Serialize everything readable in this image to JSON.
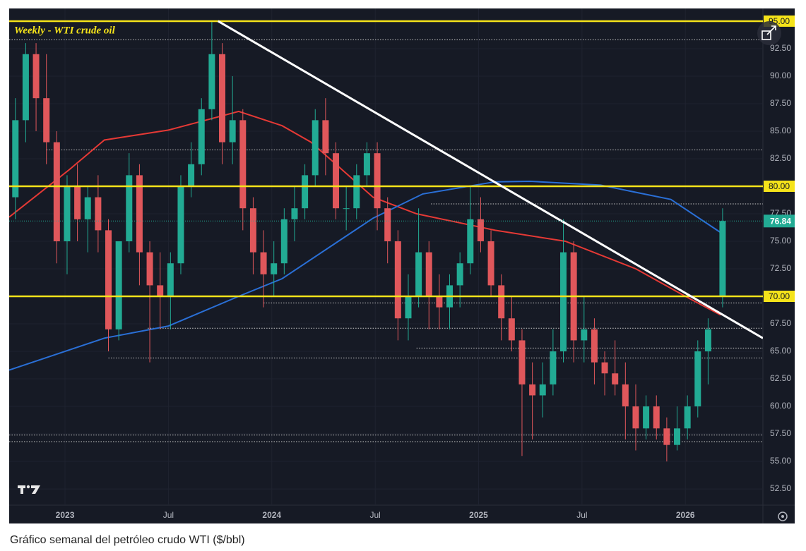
{
  "chart_data": {
    "type": "candlestick",
    "title": "Weekly - WTI crude oil",
    "caption": "Gráfico semanal del petróleo crudo WTI ($/bbl)",
    "xlim": [
      2022.73,
      2026.375
    ],
    "xticks": [
      2023,
      {
        "value": 2023.5,
        "label": "Jul"
      },
      2024,
      {
        "value": 2024.5,
        "label": "Jul"
      },
      2025,
      {
        "value": 2025.5,
        "label": "Jul"
      },
      2026
    ],
    "ylim": [
      51.03,
      96.15
    ],
    "yticks": [
      {
        "value": 52.5,
        "label": "52.50"
      },
      {
        "value": 55,
        "label": "55.00"
      },
      {
        "value": 57.5,
        "label": "57.50"
      },
      {
        "value": 60,
        "label": "60.00"
      },
      {
        "value": 62.5,
        "label": "62.50"
      },
      {
        "value": 65,
        "label": "65.00"
      },
      {
        "value": 67.5,
        "label": "67.50"
      },
      {
        "value": 70,
        "label": "70.00"
      },
      {
        "value": 72.5,
        "label": "72.50"
      },
      {
        "value": 75,
        "label": "75.00"
      },
      {
        "value": 77.5,
        "label": "77.50"
      },
      {
        "value": 80,
        "label": "80.00"
      },
      {
        "value": 82.5,
        "label": "82.50"
      },
      {
        "value": 85,
        "label": "85.00"
      },
      {
        "value": 87.5,
        "label": "87.50"
      },
      {
        "value": 90,
        "label": "90.00"
      },
      {
        "value": 92.5,
        "label": "92.50"
      }
    ],
    "grid": true,
    "up_color": "#22ab94",
    "down_color": "#e0575b",
    "x": [
      2022.76,
      2022.81,
      2022.86,
      2022.91,
      2022.96,
      2023.01,
      2023.06,
      2023.11,
      2023.16,
      2023.21,
      2023.26,
      2023.31,
      2023.36,
      2023.41,
      2023.46,
      2023.51,
      2023.56,
      2023.61,
      2023.66,
      2023.71,
      2023.76,
      2023.81,
      2023.86,
      2023.91,
      2023.96,
      2024.01,
      2024.06,
      2024.11,
      2024.16,
      2024.21,
      2024.26,
      2024.31,
      2024.36,
      2024.41,
      2024.46,
      2024.51,
      2024.56,
      2024.61,
      2024.66,
      2024.71,
      2024.76,
      2024.81,
      2024.86,
      2024.91,
      2024.96,
      2025.01,
      2025.06,
      2025.11,
      2025.16,
      2025.21,
      2025.26,
      2025.31,
      2025.36,
      2025.41,
      2025.46,
      2025.51,
      2025.56,
      2025.61,
      2025.66,
      2025.71,
      2025.76,
      2025.81,
      2025.86,
      2025.91,
      2025.96,
      2026.01,
      2026.06,
      2026.11,
      2026.18
    ],
    "open": [
      79,
      86,
      92,
      88,
      84,
      75,
      80,
      77,
      79,
      76,
      67,
      75,
      81,
      74,
      71,
      70,
      73,
      80,
      82,
      87,
      92,
      84,
      86,
      78,
      74,
      72,
      73,
      77,
      78,
      81,
      86,
      83,
      78,
      78,
      81,
      83,
      78,
      75,
      68,
      70,
      74,
      70,
      69,
      71,
      73,
      77,
      75,
      71,
      68,
      66,
      62,
      61,
      62,
      65,
      74,
      66,
      67,
      64,
      63,
      62,
      60,
      58,
      60,
      58,
      56.5,
      58,
      60,
      65,
      70
    ],
    "high": [
      88,
      93,
      93,
      92,
      85,
      81,
      82,
      80,
      81,
      77,
      75,
      83,
      82,
      75,
      74,
      74,
      81,
      84,
      88,
      95,
      93,
      90,
      87,
      79,
      76,
      75,
      78,
      80,
      82,
      87,
      88,
      84,
      80,
      82,
      84,
      84,
      79,
      76,
      72,
      78,
      75,
      72,
      72,
      74,
      80,
      79,
      76,
      72,
      70,
      67,
      64,
      64,
      67,
      77,
      75,
      70,
      68,
      65,
      66,
      64,
      62,
      61,
      61,
      59,
      60,
      61,
      66,
      68,
      78
    ],
    "low": [
      77,
      84,
      85,
      82,
      73,
      72,
      75,
      74,
      74,
      65,
      66,
      74,
      71,
      64,
      67,
      67,
      72,
      79,
      81,
      86,
      82,
      82,
      76,
      72,
      69,
      70,
      72,
      75,
      77,
      80,
      81,
      77,
      76,
      77,
      80,
      76,
      73,
      66,
      66,
      69,
      67,
      67,
      67,
      69,
      72,
      74,
      70,
      66,
      65,
      55.5,
      57,
      59,
      61,
      64,
      64,
      64,
      62,
      61,
      61,
      57,
      56,
      57,
      57,
      55,
      56,
      57,
      59,
      62,
      69
    ],
    "close": [
      86,
      92,
      88,
      84,
      75,
      80,
      77,
      79,
      76,
      67,
      75,
      81,
      74,
      71,
      70,
      73,
      80,
      82,
      87,
      92,
      84,
      86,
      78,
      74,
      72,
      73,
      77,
      78,
      81,
      86,
      83,
      78,
      78,
      81,
      83,
      78,
      75,
      68,
      70,
      74,
      70,
      69,
      71,
      73,
      77,
      75,
      71,
      68,
      66,
      62,
      61,
      62,
      65,
      74,
      66,
      67,
      64,
      63,
      62,
      60,
      58,
      60,
      58,
      56.5,
      58,
      60,
      65,
      67,
      76.84
    ],
    "moving_averages": [
      {
        "color": "#e53935",
        "x": [
          2022.73,
          2023.02,
          2023.19,
          2023.5,
          2023.84,
          2024.05,
          2024.19,
          2024.49,
          2024.7,
          2025.08,
          2025.42,
          2025.76,
          2026.0,
          2026.17
        ],
        "values": [
          77.2,
          81.5,
          84.2,
          85.1,
          86.8,
          85.5,
          84,
          79,
          77.5,
          76,
          75,
          72.5,
          70,
          68.3
        ]
      },
      {
        "color": "#2a6fd6",
        "x": [
          2022.73,
          2023.19,
          2023.5,
          2023.84,
          2024.05,
          2024.49,
          2024.73,
          2025.08,
          2025.25,
          2025.59,
          2025.93,
          2026.17
        ],
        "values": [
          63.3,
          66.2,
          67.3,
          70,
          71.6,
          77.1,
          79.3,
          80.4,
          80.45,
          80.1,
          78.8,
          75.8
        ]
      }
    ],
    "trendline": {
      "color": "#ffffff",
      "x": [
        2023.74,
        2026.375
      ],
      "values": [
        95,
        66.2
      ]
    },
    "levels": [
      {
        "value": 95,
        "label": "95.00"
      },
      {
        "value": 80,
        "label": "80.00"
      },
      {
        "value": 70,
        "label": "70.00"
      }
    ],
    "level_color": "#f5e31a",
    "dotted_levels": [
      {
        "value": 93.3,
        "x_start": 2022.73
      },
      {
        "value": 83.3,
        "x_start": 2022.91
      },
      {
        "value": 78.4,
        "x_start": 2024.77
      },
      {
        "value": 69.4,
        "x_start": 2023.96
      },
      {
        "value": 67.1,
        "x_start": 2023.4
      },
      {
        "value": 65.3,
        "x_start": 2024.7
      },
      {
        "value": 64.4,
        "x_start": 2023.21
      },
      {
        "value": 57.4,
        "x_start": 2022.73
      },
      {
        "value": 56.8,
        "x_start": 2022.73
      }
    ]
  }
}
